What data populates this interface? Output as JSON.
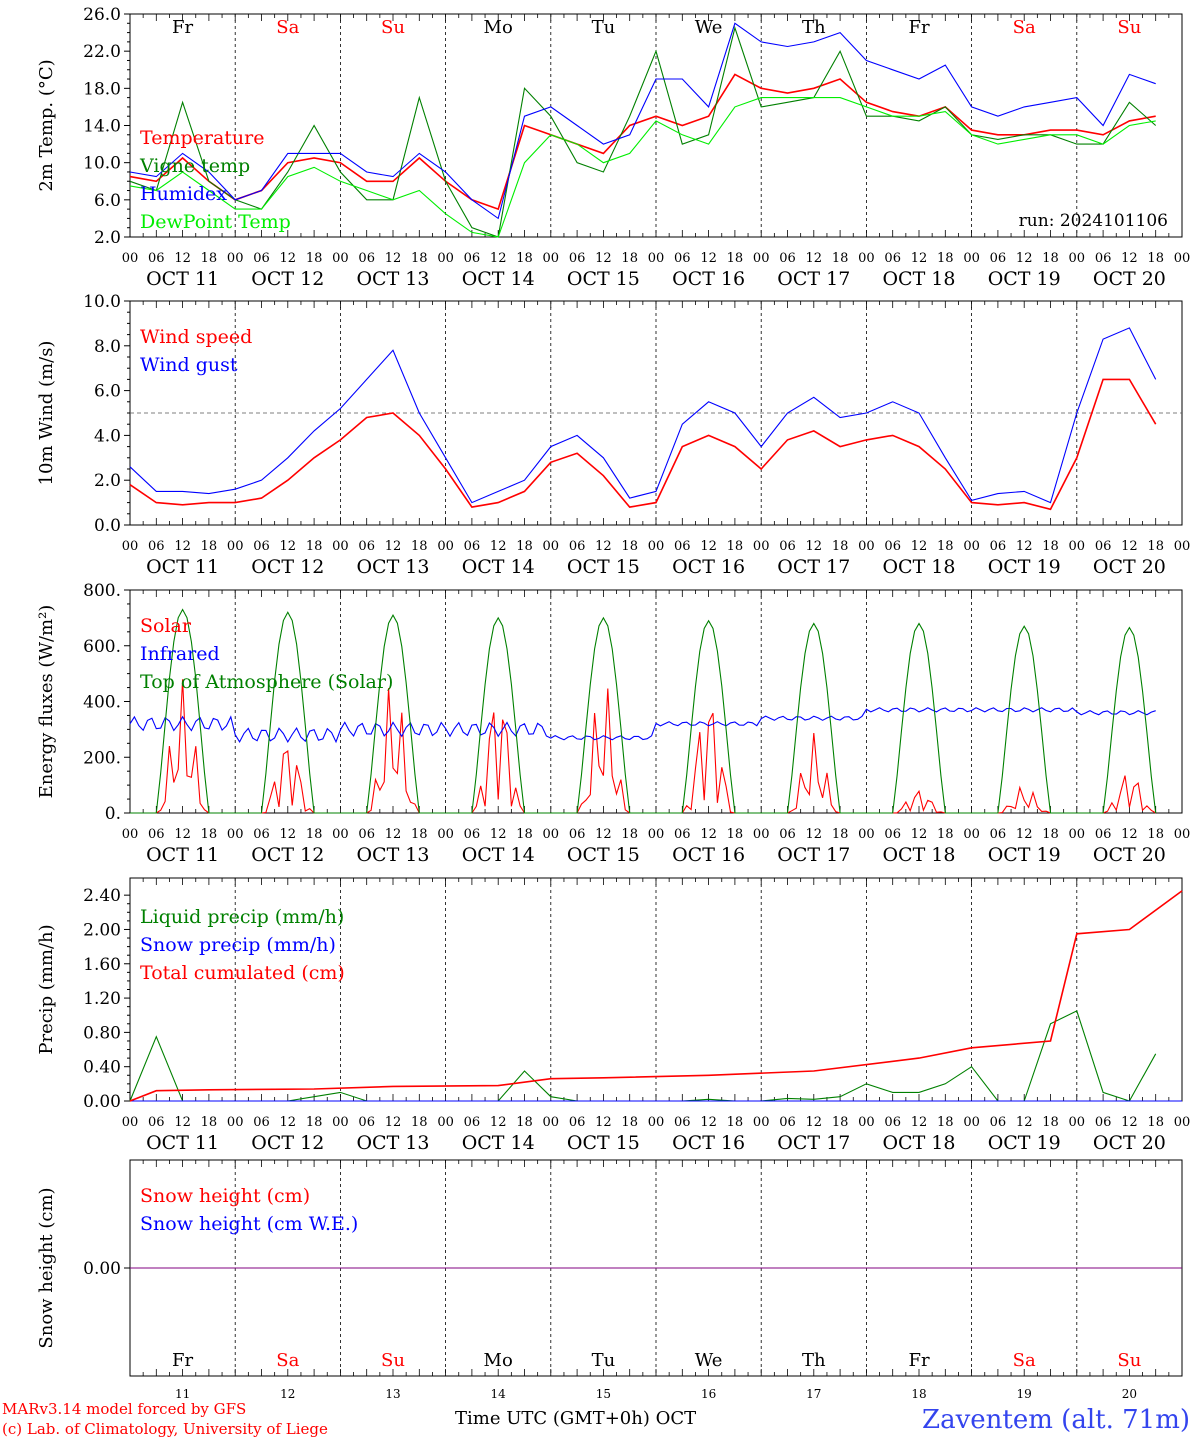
{
  "days": [
    {
      "abbr": "Fr",
      "num": "11",
      "date": "OCT 11",
      "weekend": false
    },
    {
      "abbr": "Sa",
      "num": "12",
      "date": "OCT 12",
      "weekend": true
    },
    {
      "abbr": "Su",
      "num": "13",
      "date": "OCT 13",
      "weekend": true
    },
    {
      "abbr": "Mo",
      "num": "14",
      "date": "OCT 14",
      "weekend": false
    },
    {
      "abbr": "Tu",
      "num": "15",
      "date": "OCT 15",
      "weekend": false
    },
    {
      "abbr": "We",
      "num": "16",
      "date": "OCT 16",
      "weekend": false
    },
    {
      "abbr": "Th",
      "num": "17",
      "date": "OCT 17",
      "weekend": false
    },
    {
      "abbr": "Fr",
      "num": "18",
      "date": "OCT 18",
      "weekend": false
    },
    {
      "abbr": "Sa",
      "num": "19",
      "date": "OCT 19",
      "weekend": true
    },
    {
      "abbr": "Su",
      "num": "20",
      "date": "OCT 20",
      "weekend": true
    }
  ],
  "hour_labels": [
    "00",
    "06",
    "12",
    "18"
  ],
  "colors": {
    "red": "#ff0000",
    "green": "#008000",
    "blue": "#0000ff",
    "lightgreen": "#00ee00",
    "purple": "#800080",
    "weekday": "#000000",
    "weekend": "#ff0000"
  },
  "run_label": "run: 2024101106",
  "footer": {
    "model": "MARv3.14 model forced by GFS",
    "lab": "(c) Lab. of Climatology, University of Liege",
    "time_axis": "Time UTC (GMT+0h) OCT",
    "station": "Zaventem (alt. 71m)"
  },
  "chart_data": [
    {
      "type": "line",
      "ylabel": "2m Temp. (°C)",
      "ylim": [
        2,
        26
      ],
      "ticks": [
        "2.0",
        "6.0",
        "10.0",
        "14.0",
        "18.0",
        "22.0",
        "26.0"
      ],
      "series": [
        {
          "name": "Temperature",
          "color": "#ff0000",
          "hours": [
            0,
            6,
            12,
            18,
            24,
            30,
            36,
            42,
            48,
            54,
            60,
            66,
            72,
            78,
            84,
            90,
            96,
            102,
            108,
            114,
            120,
            126,
            132,
            138,
            144,
            150,
            156,
            162,
            168,
            174,
            180,
            186,
            192,
            198,
            204,
            210,
            216,
            222,
            228,
            234
          ],
          "values": [
            8.5,
            8,
            10.5,
            8,
            6,
            7,
            10,
            10.5,
            10,
            8,
            8,
            10.5,
            8,
            6,
            5,
            14,
            13,
            12,
            11,
            14,
            15,
            14,
            15,
            19.5,
            18,
            17.5,
            18,
            19,
            16.5,
            15.5,
            15,
            16,
            13.5,
            13,
            13,
            13.5,
            13.5,
            13,
            14.5,
            15
          ]
        },
        {
          "name": "Vigne temp",
          "color": "#008000",
          "hours": [
            0,
            6,
            12,
            18,
            24,
            30,
            36,
            42,
            48,
            54,
            60,
            66,
            72,
            78,
            84,
            90,
            96,
            102,
            108,
            114,
            120,
            126,
            132,
            138,
            144,
            150,
            156,
            162,
            168,
            174,
            180,
            186,
            192,
            198,
            204,
            210,
            216,
            222,
            228,
            234
          ],
          "values": [
            8,
            7,
            16.5,
            8,
            6,
            5,
            9,
            14,
            9,
            6,
            6,
            17,
            8,
            3,
            2,
            18,
            15,
            10,
            9,
            15,
            22,
            12,
            13,
            24.5,
            16,
            16.5,
            17,
            22,
            15,
            15,
            14.5,
            16,
            13,
            12.5,
            13,
            13,
            12,
            12,
            16.5,
            14
          ]
        },
        {
          "name": "Humidex",
          "color": "#0000ff",
          "hours": [
            0,
            6,
            12,
            18,
            24,
            30,
            36,
            42,
            48,
            54,
            60,
            66,
            72,
            78,
            84,
            90,
            96,
            102,
            108,
            114,
            120,
            126,
            132,
            138,
            144,
            150,
            156,
            162,
            168,
            174,
            180,
            186,
            192,
            198,
            204,
            210,
            216,
            222,
            228,
            234
          ],
          "values": [
            9,
            8.5,
            11,
            9,
            6,
            7,
            11,
            11,
            11,
            9,
            8.5,
            11,
            9,
            6,
            4,
            15,
            16,
            14,
            12,
            13,
            19,
            19,
            16,
            25,
            23,
            22.5,
            23,
            24,
            21,
            20,
            19,
            20.5,
            16,
            15,
            16,
            16.5,
            17,
            14,
            19.5,
            18.5
          ]
        },
        {
          "name": "DewPoint Temp",
          "color": "#00ee00",
          "hours": [
            0,
            6,
            12,
            18,
            24,
            30,
            36,
            42,
            48,
            54,
            60,
            66,
            72,
            78,
            84,
            90,
            96,
            102,
            108,
            114,
            120,
            126,
            132,
            138,
            144,
            150,
            156,
            162,
            168,
            174,
            180,
            186,
            192,
            198,
            204,
            210,
            216,
            222,
            228,
            234
          ],
          "values": [
            7.5,
            7,
            9,
            7,
            5,
            5,
            8.5,
            9.5,
            8,
            7,
            6,
            7,
            4.5,
            2.5,
            2,
            10,
            13,
            12,
            10,
            11,
            14.5,
            13,
            12,
            16,
            17,
            17,
            17,
            17,
            16,
            15,
            15,
            15.5,
            13,
            12,
            12.5,
            13,
            13,
            12,
            14,
            14.5
          ]
        }
      ]
    },
    {
      "type": "line",
      "ylabel": "10m Wind (m/s)",
      "ylim": [
        0,
        10
      ],
      "ticks": [
        "0.0",
        "2.0",
        "4.0",
        "6.0",
        "8.0",
        "10.0"
      ],
      "series": [
        {
          "name": "Wind speed",
          "color": "#ff0000",
          "hours": [
            0,
            6,
            12,
            18,
            24,
            30,
            36,
            42,
            48,
            54,
            60,
            66,
            72,
            78,
            84,
            90,
            96,
            102,
            108,
            114,
            120,
            126,
            132,
            138,
            144,
            150,
            156,
            162,
            168,
            174,
            180,
            186,
            192,
            198,
            204,
            210,
            216,
            222,
            228,
            234
          ],
          "values": [
            1.8,
            1,
            0.9,
            1,
            1,
            1.2,
            2,
            3,
            3.8,
            4.8,
            5,
            4,
            2.5,
            0.8,
            1,
            1.5,
            2.8,
            3.2,
            2.2,
            0.8,
            1,
            3.5,
            4,
            3.5,
            2.5,
            3.8,
            4.2,
            3.5,
            3.8,
            4,
            3.5,
            2.5,
            1,
            0.9,
            1,
            0.7,
            3,
            6.5,
            6.5,
            4.5
          ]
        },
        {
          "name": "Wind gust",
          "color": "#0000ff",
          "hours": [
            0,
            6,
            12,
            18,
            24,
            30,
            36,
            42,
            48,
            54,
            60,
            66,
            72,
            78,
            84,
            90,
            96,
            102,
            108,
            114,
            120,
            126,
            132,
            138,
            144,
            150,
            156,
            162,
            168,
            174,
            180,
            186,
            192,
            198,
            204,
            210,
            216,
            222,
            228,
            234
          ],
          "values": [
            2.6,
            1.5,
            1.5,
            1.4,
            1.6,
            2,
            3,
            4.2,
            5.2,
            6.5,
            7.8,
            5,
            3,
            1,
            1.5,
            2,
            3.5,
            4,
            3,
            1.2,
            1.5,
            4.5,
            5.5,
            5,
            3.5,
            5,
            5.7,
            4.8,
            5,
            5.5,
            5,
            3,
            1.1,
            1.4,
            1.5,
            1,
            5,
            8.3,
            8.8,
            6.5
          ]
        }
      ]
    },
    {
      "type": "line",
      "ylabel": "Energy fluxes (W/m²)",
      "ylim": [
        0,
        800
      ],
      "ticks": [
        "0.",
        "200.",
        "400.",
        "600.",
        "800."
      ],
      "series": [
        {
          "name": "Solar",
          "color": "#ff0000",
          "values_note": "daily midday peaks",
          "peaks": [
            480,
            290,
            480,
            480,
            480,
            460,
            290,
            90,
            100,
            160
          ]
        },
        {
          "name": "Infrared",
          "color": "#0000ff",
          "levels": [
            320,
            280,
            300,
            300,
            270,
            320,
            340,
            370,
            370,
            360
          ]
        },
        {
          "name": "Top of Atmosphere (Solar)",
          "color": "#008000",
          "peaks": [
            730,
            720,
            710,
            700,
            700,
            690,
            680,
            680,
            670,
            665
          ]
        }
      ]
    },
    {
      "type": "line",
      "ylabel": "Precip (mm/h)",
      "ylim": [
        0,
        2.6
      ],
      "ticks": [
        "0.00",
        "0.40",
        "0.80",
        "1.20",
        "1.60",
        "2.00",
        "2.40"
      ],
      "series": [
        {
          "name": "Liquid precip (mm/h)",
          "color": "#008000",
          "hours": [
            0,
            6,
            12,
            18,
            24,
            30,
            36,
            42,
            48,
            54,
            60,
            66,
            72,
            78,
            84,
            90,
            96,
            102,
            108,
            114,
            120,
            126,
            132,
            138,
            144,
            150,
            156,
            162,
            168,
            174,
            180,
            186,
            192,
            198,
            204,
            210,
            216,
            222,
            228,
            234
          ],
          "values": [
            0,
            0.75,
            0,
            0,
            0,
            0,
            0,
            0.05,
            0.1,
            0,
            0,
            0,
            0,
            0,
            0,
            0.35,
            0.05,
            0,
            0,
            0,
            0,
            0,
            0.02,
            0,
            0,
            0.03,
            0.02,
            0.05,
            0.2,
            0.1,
            0.1,
            0.2,
            0.4,
            0,
            0,
            0.9,
            1.05,
            0.1,
            0,
            0.55
          ]
        },
        {
          "name": "Snow precip (mm/h)",
          "color": "#0000ff",
          "values": [
            0,
            0,
            0,
            0,
            0,
            0,
            0,
            0,
            0,
            0
          ]
        },
        {
          "name": "Total cumulated (cm)",
          "color": "#ff0000",
          "hours": [
            0,
            6,
            18,
            42,
            60,
            84,
            96,
            108,
            132,
            156,
            180,
            192,
            210,
            216,
            228,
            240
          ],
          "values": [
            0,
            0.12,
            0.13,
            0.14,
            0.17,
            0.18,
            0.26,
            0.27,
            0.3,
            0.35,
            0.5,
            0.62,
            0.7,
            1.95,
            2.0,
            2.45
          ]
        }
      ]
    },
    {
      "type": "line",
      "ylabel": "Snow height (cm)",
      "ylim": [
        -1,
        1
      ],
      "ticks": [
        "0.00"
      ],
      "series": [
        {
          "name": "Snow height (cm)",
          "color": "#ff0000",
          "values": [
            0,
            0
          ]
        },
        {
          "name": "Snow height (cm W.E.)",
          "color": "#0000ff",
          "values": [
            0,
            0
          ]
        }
      ]
    }
  ]
}
